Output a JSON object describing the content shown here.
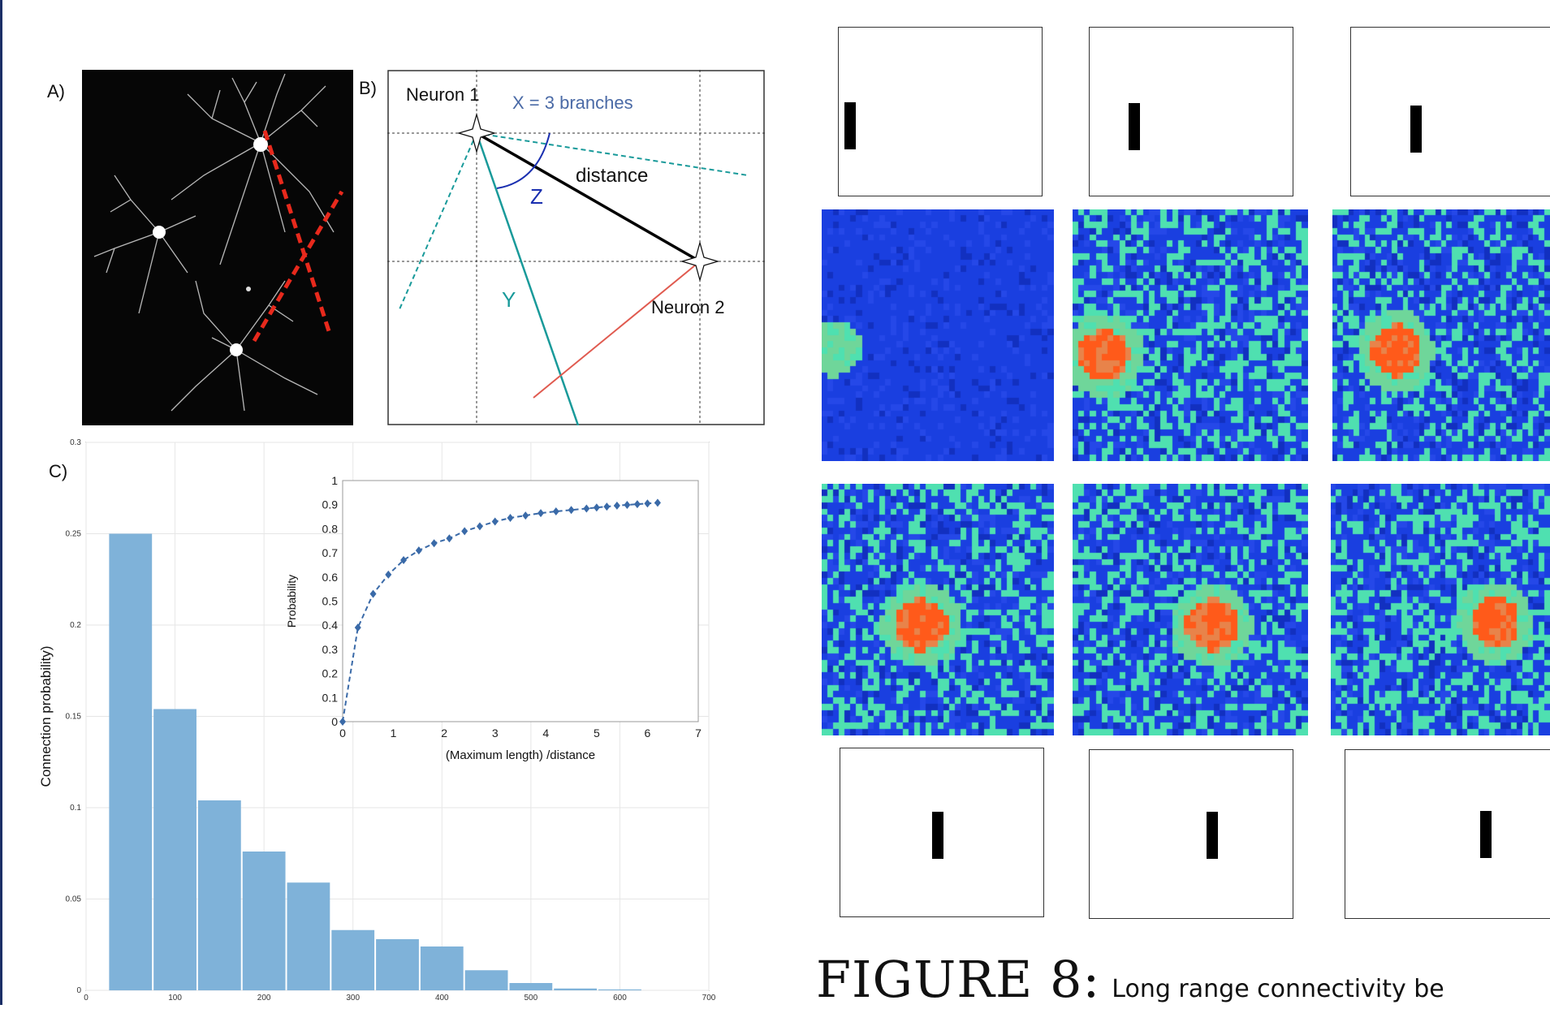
{
  "figure": {
    "caption_label": "FIGURE 8:",
    "caption_text": "Long range connectivity be"
  },
  "panel_a": {
    "label": "A)"
  },
  "panel_b": {
    "label": "B)",
    "neuron1": "Neuron 1",
    "neuron2": "Neuron 2",
    "x_label": "X = 3 branches",
    "distance_label": "distance",
    "z_label": "Z",
    "y_label": "Y"
  },
  "panel_c": {
    "label": "C)"
  },
  "colors": {
    "histogram_bar": "#7fb2d9",
    "inset_marker": "#3a6aa8",
    "teal_line": "#199a9a",
    "red_line": "#e05a4f",
    "angle_arc": "#1a2fb0",
    "branch_text": "#4a6aa6",
    "heat_low": "#1a3fe0",
    "heat_mid": "#4fe0b0",
    "heat_high": "#ff5a1a"
  },
  "chart_data": [
    {
      "type": "bar",
      "title": "",
      "xlabel": "",
      "ylabel": "Connection probability)",
      "x_bin_edges": [
        25,
        75,
        125,
        175,
        225,
        275,
        325,
        375,
        425,
        475,
        525,
        575,
        625
      ],
      "values": [
        0.25,
        0.154,
        0.104,
        0.076,
        0.059,
        0.033,
        0.028,
        0.024,
        0.011,
        0.004,
        0.001,
        0.0005
      ],
      "xlim": [
        0,
        700
      ],
      "ylim": [
        0,
        0.3
      ],
      "xticks": [
        "0",
        "100",
        "200",
        "300",
        "400",
        "500",
        "600",
        "700"
      ],
      "yticks": [
        "0",
        "0.05",
        "0.1",
        "0.15",
        "0.2",
        "0.25",
        "0.3"
      ],
      "grid": true
    },
    {
      "type": "line",
      "title": "",
      "xlabel": "(Maximum length) /distance",
      "ylabel": "Probability",
      "x": [
        0,
        0.3,
        0.6,
        0.9,
        1.2,
        1.5,
        1.8,
        2.1,
        2.4,
        2.7,
        3.0,
        3.3,
        3.6,
        3.9,
        4.2,
        4.5,
        4.8,
        5.0,
        5.2,
        5.4,
        5.6,
        5.8,
        6.0,
        6.2
      ],
      "y": [
        0,
        0.39,
        0.53,
        0.61,
        0.67,
        0.71,
        0.74,
        0.76,
        0.79,
        0.81,
        0.83,
        0.845,
        0.855,
        0.865,
        0.872,
        0.878,
        0.884,
        0.888,
        0.892,
        0.896,
        0.899,
        0.902,
        0.905,
        0.908
      ],
      "xlim": [
        0,
        7
      ],
      "ylim": [
        0,
        1
      ],
      "xticks": [
        "0",
        "1",
        "2",
        "3",
        "4",
        "5",
        "6",
        "7"
      ],
      "yticks": [
        "0",
        "0.1",
        "0.2",
        "0.3",
        "0.4",
        "0.5",
        "0.6",
        "0.7",
        "0.8",
        "0.9",
        "1"
      ],
      "grid": false
    }
  ]
}
